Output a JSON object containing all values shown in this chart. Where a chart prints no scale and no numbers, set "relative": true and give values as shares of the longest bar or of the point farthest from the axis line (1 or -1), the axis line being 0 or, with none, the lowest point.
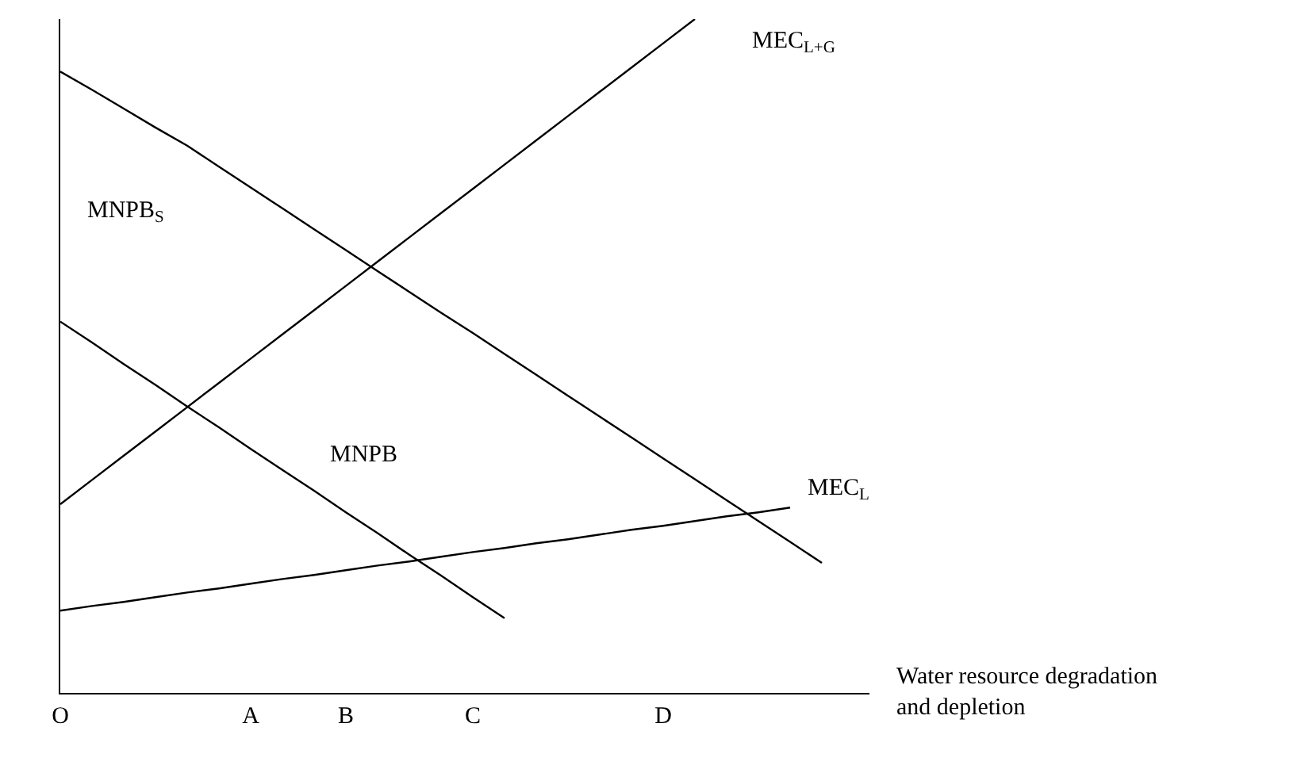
{
  "chart_data": {
    "type": "line",
    "relative": true,
    "xlabel": "Water resource degradation\nand depletion",
    "categories": [
      "O",
      null,
      null,
      null,
      null,
      null,
      "A",
      null,
      null,
      "B",
      null,
      null,
      null,
      "C",
      null,
      null,
      null,
      null,
      null,
      "D",
      null,
      null,
      null,
      null,
      null,
      null
    ],
    "series": [
      {
        "name": "MNPB$_{S}$",
        "color": "#000000",
        "values": [
          0.922,
          0.895,
          0.867,
          0.839,
          0.812,
          0.781,
          0.75,
          0.719,
          0.688,
          0.657,
          0.626,
          0.595,
          0.564,
          0.534,
          0.503,
          0.472,
          0.441,
          0.41,
          0.379,
          0.348,
          0.317,
          0.286,
          0.255,
          0.224,
          0.193,
          null
        ]
      },
      {
        "name": "MNPB",
        "color": "#000000",
        "values": [
          0.551,
          0.52,
          0.488,
          0.457,
          0.425,
          0.394,
          0.362,
          0.331,
          0.3,
          0.268,
          0.237,
          0.205,
          0.174,
          0.142,
          0.111,
          null,
          null,
          null,
          null,
          null,
          null,
          null,
          null,
          null,
          null,
          null
        ]
      },
      {
        "name": "MEC$_{L+G}$",
        "color": "#000000",
        "values": [
          0.28,
          0.316,
          0.352,
          0.388,
          0.424,
          0.46,
          0.496,
          0.532,
          0.568,
          0.604,
          0.64,
          0.676,
          0.712,
          0.748,
          0.784,
          0.82,
          0.856,
          0.892,
          0.928,
          0.964,
          1.0,
          null,
          null,
          null,
          null,
          null
        ]
      },
      {
        "name": "MEC$_{L}$",
        "color": "#000000",
        "values": [
          0.122,
          0.129,
          0.135,
          0.142,
          0.149,
          0.155,
          0.162,
          0.169,
          0.175,
          0.182,
          0.189,
          0.195,
          0.202,
          0.209,
          0.215,
          0.222,
          0.228,
          0.235,
          0.242,
          0.248,
          0.255,
          0.262,
          0.268,
          0.275,
          null,
          null
        ]
      }
    ],
    "legend": false,
    "marker": "none",
    "line_style": "solid"
  }
}
